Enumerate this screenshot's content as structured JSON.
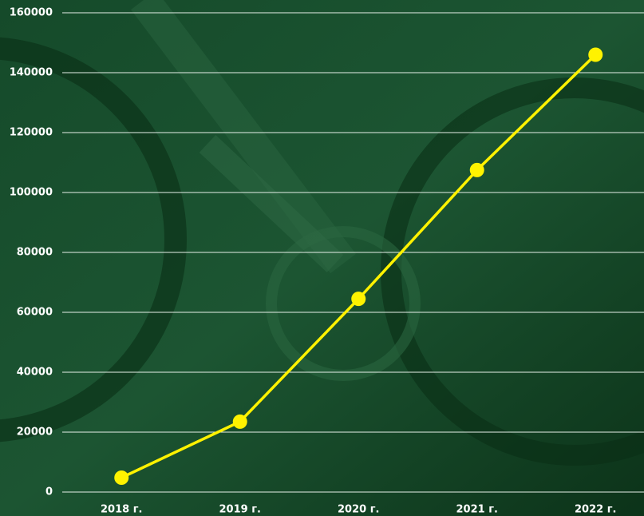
{
  "chart_data": {
    "type": "line",
    "categories": [
      "2018 г.",
      "2019 г.",
      "2020 г.",
      "2021 г.",
      "2022 г."
    ],
    "series": [
      {
        "color": "#fff200",
        "values": [
          4800,
          23500,
          64500,
          107500,
          146000
        ]
      }
    ],
    "ylim": [
      0,
      160000
    ],
    "yticks": [
      0,
      20000,
      40000,
      60000,
      80000,
      100000,
      120000,
      140000,
      160000
    ],
    "grid": true
  }
}
